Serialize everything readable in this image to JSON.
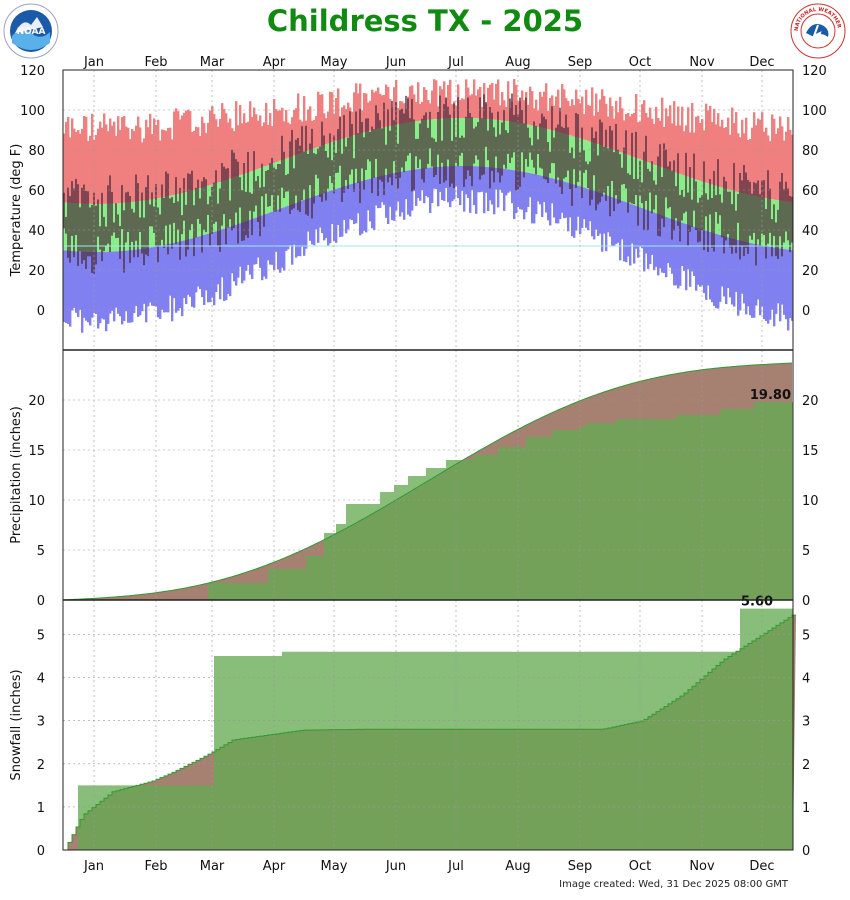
{
  "title": "Childress TX - 2025",
  "footer": "Image created: Wed, 31 Dec 2025 08:00 GMT",
  "logos": {
    "left": "NOAA",
    "right": "NATIONAL WEATHER SERVICE"
  },
  "months": [
    "Jan",
    "Feb",
    "Mar",
    "Apr",
    "May",
    "Jun",
    "Jul",
    "Aug",
    "Sep",
    "Oct",
    "Nov",
    "Dec"
  ],
  "colors": {
    "record_range": "#f08080",
    "normal_range": "#88ee88",
    "record_low": "#8080f0",
    "observed": "#4a2a3a",
    "freezing": "#a0e8e8",
    "precip_normal": "#a68070",
    "precip_observed": "#66aa55",
    "observed_fill": "#55aa55",
    "title": "#108a10"
  },
  "chart_data": [
    {
      "type": "area",
      "ylabel": "Temperature (deg F)",
      "ylim": [
        -20,
        120
      ],
      "yticks": [
        0,
        20,
        40,
        60,
        80,
        100,
        120
      ],
      "grid": true,
      "freezing_line": 32,
      "record_high_annual_avg": 100,
      "record_high_seasonal_amp": 18,
      "normal_high": {
        "min": 53,
        "max": 96,
        "min_day": 15,
        "max_day": 200
      },
      "normal_low": {
        "min": 29,
        "max": 72,
        "min_day": 15,
        "max_day": 200
      },
      "record_low": {
        "min": 2,
        "max": 62,
        "min_day": 15,
        "max_day": 200
      }
    },
    {
      "type": "area",
      "ylabel": "Precipitation (inches)",
      "ylim": [
        0,
        25
      ],
      "yticks": [
        0,
        5,
        10,
        15,
        20
      ],
      "grid": true,
      "annotation": "19.80",
      "normal_total": 23.7,
      "observed_steps": [
        {
          "day": 1,
          "value": 0
        },
        {
          "day": 73,
          "value": 1.7
        },
        {
          "day": 103,
          "value": 3.1
        },
        {
          "day": 122,
          "value": 4.4
        },
        {
          "day": 131,
          "value": 6.7
        },
        {
          "day": 137,
          "value": 7.6
        },
        {
          "day": 142,
          "value": 9.6
        },
        {
          "day": 159,
          "value": 10.8
        },
        {
          "day": 166,
          "value": 11.5
        },
        {
          "day": 173,
          "value": 12.4
        },
        {
          "day": 182,
          "value": 13.2
        },
        {
          "day": 192,
          "value": 14.0
        },
        {
          "day": 206,
          "value": 14.5
        },
        {
          "day": 218,
          "value": 15.3
        },
        {
          "day": 232,
          "value": 16.3
        },
        {
          "day": 245,
          "value": 17.0
        },
        {
          "day": 258,
          "value": 17.3
        },
        {
          "day": 262,
          "value": 17.7
        },
        {
          "day": 277,
          "value": 18.1
        },
        {
          "day": 307,
          "value": 18.5
        },
        {
          "day": 329,
          "value": 19.1
        },
        {
          "day": 346,
          "value": 19.8
        }
      ]
    },
    {
      "type": "area",
      "ylabel": "Snowfall (inches)",
      "ylim": [
        0,
        5.8
      ],
      "yticks": [
        0,
        1,
        2,
        3,
        4,
        5
      ],
      "grid": true,
      "annotation": "5.60",
      "normal_points": [
        {
          "day": 1,
          "value": 0
        },
        {
          "day": 10,
          "value": 0.8
        },
        {
          "day": 25,
          "value": 1.35
        },
        {
          "day": 45,
          "value": 1.6
        },
        {
          "day": 55,
          "value": 1.8
        },
        {
          "day": 70,
          "value": 2.15
        },
        {
          "day": 76,
          "value": 2.3
        },
        {
          "day": 85,
          "value": 2.55
        },
        {
          "day": 100,
          "value": 2.65
        },
        {
          "day": 120,
          "value": 2.78
        },
        {
          "day": 150,
          "value": 2.8
        },
        {
          "day": 250,
          "value": 2.8
        },
        {
          "day": 270,
          "value": 2.8
        },
        {
          "day": 290,
          "value": 3.0
        },
        {
          "day": 310,
          "value": 3.6
        },
        {
          "day": 330,
          "value": 4.4
        },
        {
          "day": 350,
          "value": 5.0
        },
        {
          "day": 365,
          "value": 5.45
        }
      ],
      "observed_steps": [
        {
          "day": 1,
          "value": 0
        },
        {
          "day": 8,
          "value": 1.5
        },
        {
          "day": 76,
          "value": 4.5
        },
        {
          "day": 110,
          "value": 4.6
        },
        {
          "day": 339,
          "value": 5.6
        }
      ]
    }
  ]
}
